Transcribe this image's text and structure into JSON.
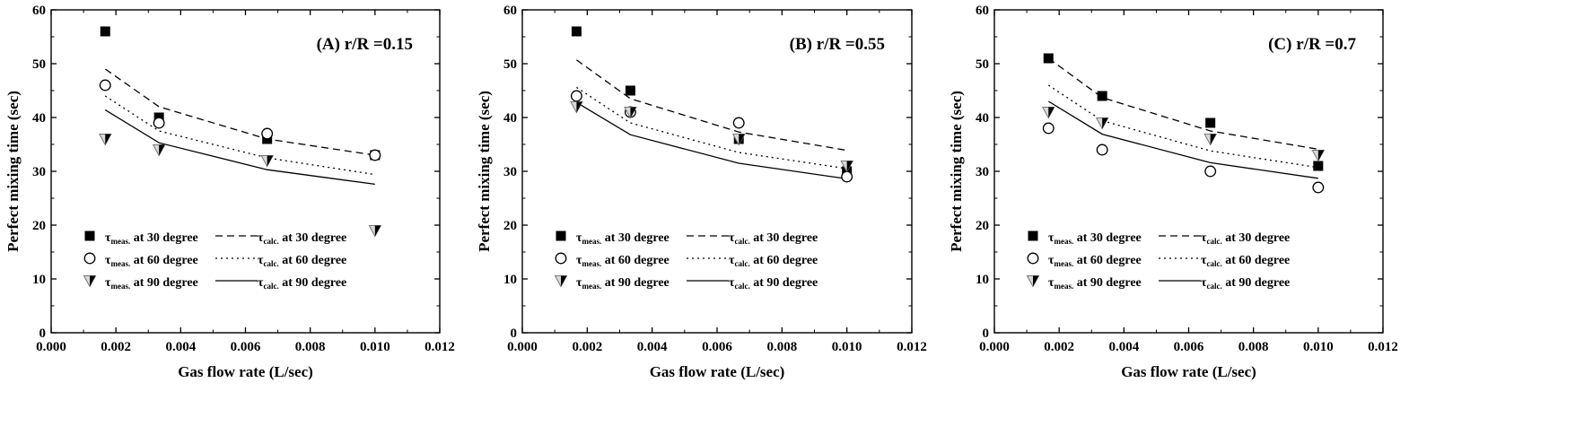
{
  "chart_data": [
    {
      "type": "scatter",
      "panel_label": "(A) r/R =0.15",
      "xlabel": "Gas flow rate (L/sec)",
      "ylabel": "Perfect mixing time (sec)",
      "xlim": [
        0.0,
        0.012
      ],
      "ylim": [
        0,
        60
      ],
      "xticks": [
        "0.000",
        "0.002",
        "0.004",
        "0.006",
        "0.008",
        "0.010",
        "0.012"
      ],
      "yticks": [
        "0",
        "10",
        "20",
        "30",
        "40",
        "50",
        "60"
      ],
      "x": [
        0.00167,
        0.00333,
        0.00667,
        0.01
      ],
      "series": [
        {
          "name": "τmeas. at 30 degree",
          "kind": "marker",
          "marker": "filled-square",
          "values": [
            56,
            40,
            36,
            33
          ]
        },
        {
          "name": "τmeas. at 60 degree",
          "kind": "marker",
          "marker": "open-circle",
          "values": [
            46,
            39,
            37,
            33
          ]
        },
        {
          "name": "τmeas. at 90 degree",
          "kind": "marker",
          "marker": "half-triangle-down",
          "values": [
            36,
            34,
            32,
            19
          ]
        },
        {
          "name": "τcalc. at 30 degree",
          "kind": "line",
          "dash": "dashed",
          "values": [
            49,
            42,
            36,
            33
          ]
        },
        {
          "name": "τcalc. at 60 degree",
          "kind": "line",
          "dash": "dotted",
          "values": [
            44,
            37.5,
            32.5,
            29.4
          ]
        },
        {
          "name": "τcalc. at 90 degree",
          "kind": "line",
          "dash": "solid",
          "values": [
            41.4,
            35.3,
            30.3,
            27.6
          ]
        }
      ],
      "legend_position": "bottom-left",
      "grid": false
    },
    {
      "type": "scatter",
      "panel_label": "(B) r/R =0.55",
      "xlabel": "Gas flow rate (L/sec)",
      "ylabel": "Perfect mixing time (sec)",
      "xlim": [
        0.0,
        0.012
      ],
      "ylim": [
        0,
        60
      ],
      "xticks": [
        "0.000",
        "0.002",
        "0.004",
        "0.006",
        "0.008",
        "0.010",
        "0.012"
      ],
      "yticks": [
        "0",
        "10",
        "20",
        "30",
        "40",
        "50",
        "60"
      ],
      "x": [
        0.00167,
        0.00333,
        0.00667,
        0.01
      ],
      "series": [
        {
          "name": "τmeas. at 30 degree",
          "kind": "marker",
          "marker": "filled-square",
          "values": [
            56,
            45,
            36,
            30
          ]
        },
        {
          "name": "τmeas. at 60 degree",
          "kind": "marker",
          "marker": "open-circle",
          "values": [
            44,
            41,
            39,
            29
          ]
        },
        {
          "name": "τmeas. at 90 degree",
          "kind": "marker",
          "marker": "half-triangle-down",
          "values": [
            42,
            41,
            36,
            31
          ]
        },
        {
          "name": "τcalc. at 30 degree",
          "kind": "line",
          "dash": "dashed",
          "values": [
            50.7,
            43.5,
            37.3,
            33.9
          ]
        },
        {
          "name": "τcalc. at 60 degree",
          "kind": "line",
          "dash": "dotted",
          "values": [
            45.6,
            39,
            33.5,
            30.5
          ]
        },
        {
          "name": "τcalc. at 90 degree",
          "kind": "line",
          "dash": "solid",
          "values": [
            42.8,
            36.8,
            31.5,
            28.6
          ]
        }
      ],
      "legend_position": "bottom-left",
      "grid": false
    },
    {
      "type": "scatter",
      "panel_label": "(C) r/R =0.7",
      "xlabel": "Gas flow rate (L/sec)",
      "ylabel": "Perfect mixing time (sec)",
      "xlim": [
        0.0,
        0.012
      ],
      "ylim": [
        0,
        60
      ],
      "xticks": [
        "0.000",
        "0.002",
        "0.004",
        "0.006",
        "0.008",
        "0.010",
        "0.012"
      ],
      "yticks": [
        "0",
        "10",
        "20",
        "30",
        "40",
        "50",
        "60"
      ],
      "x": [
        0.00167,
        0.00333,
        0.00667,
        0.01
      ],
      "series": [
        {
          "name": "τmeas. at 30 degree",
          "kind": "marker",
          "marker": "filled-square",
          "values": [
            51,
            44,
            39,
            31
          ]
        },
        {
          "name": "τmeas. at 60 degree",
          "kind": "marker",
          "marker": "open-circle",
          "values": [
            38,
            34,
            30,
            27
          ]
        },
        {
          "name": "τmeas. at 90 degree",
          "kind": "marker",
          "marker": "half-triangle-down",
          "values": [
            41,
            39,
            36,
            33
          ]
        },
        {
          "name": "τcalc. at 30 degree",
          "kind": "line",
          "dash": "dashed",
          "values": [
            51,
            43.7,
            37.5,
            34.1
          ]
        },
        {
          "name": "τcalc. at 60 degree",
          "kind": "line",
          "dash": "dotted",
          "values": [
            46,
            39.4,
            33.8,
            30.7
          ]
        },
        {
          "name": "τcalc. at 90 degree",
          "kind": "line",
          "dash": "solid",
          "values": [
            43,
            36.9,
            31.6,
            28.7
          ]
        }
      ],
      "legend_position": "bottom-left",
      "grid": false
    }
  ],
  "legend": {
    "entries": [
      {
        "symbol": "τ",
        "sub": "meas.",
        "text": " at 30 degree",
        "marker": "filled-square"
      },
      {
        "symbol": "τ",
        "sub": "meas.",
        "text": " at 60 degree",
        "marker": "open-circle"
      },
      {
        "symbol": "τ",
        "sub": "meas.",
        "text": " at 90 degree",
        "marker": "half-triangle-down"
      },
      {
        "symbol": "τ",
        "sub": "calc.",
        "text": " at 30 degree",
        "line": "dashed"
      },
      {
        "symbol": "τ",
        "sub": "calc.",
        "text": " at 60 degree",
        "line": "dotted"
      },
      {
        "symbol": "τ",
        "sub": "calc.",
        "text": " at 90 degree",
        "line": "solid"
      }
    ]
  },
  "colors": {
    "ink": "#000000",
    "background": "#ffffff",
    "marker_light_fill": "#d9d9d9"
  }
}
